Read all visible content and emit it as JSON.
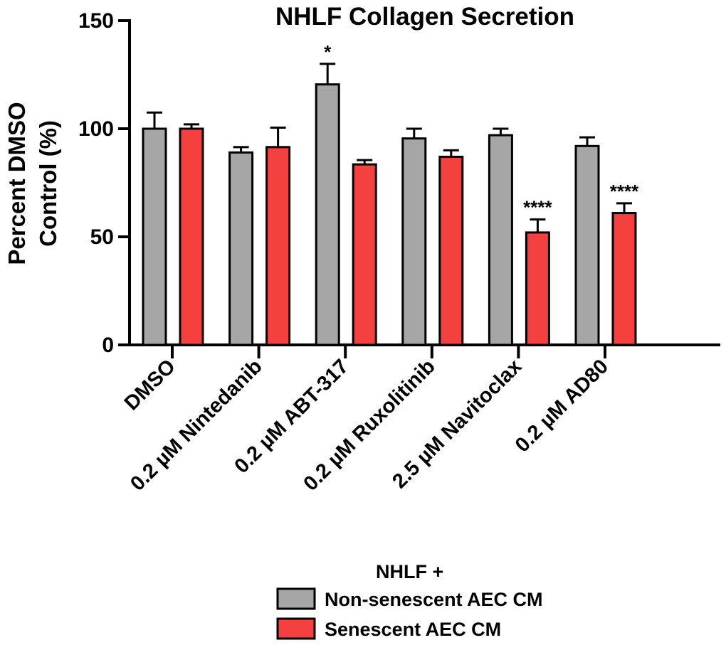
{
  "chart_data": {
    "type": "bar",
    "title": "NHLF Collagen Secretion",
    "ylabel": [
      "Percent DMSO",
      "Control (%)"
    ],
    "xlabel": "",
    "ylim": [
      0,
      150
    ],
    "yticks": [
      0,
      50,
      100,
      150
    ],
    "categories": [
      "DMSO",
      "0.2 µM Nintedanib",
      "0.2 µM ABT-317",
      "0.2 µM Ruxolitinib",
      "2.5 µM Navitoclax",
      "0.2 µM AD80"
    ],
    "series": [
      {
        "name": "Non-senescent AEC CM",
        "color": "#a6a6a6",
        "values": [
          100,
          89,
          120.5,
          95.5,
          97,
          92
        ],
        "errors": [
          7.5,
          2.5,
          9.5,
          4.5,
          3,
          4
        ],
        "annotations": [
          "",
          "",
          "*",
          "",
          "",
          ""
        ]
      },
      {
        "name": "Senescent AEC CM",
        "color": "#f54040",
        "values": [
          100,
          91.5,
          83.5,
          87,
          52,
          61
        ],
        "errors": [
          2,
          9,
          2,
          3,
          6,
          4.5
        ],
        "annotations": [
          "",
          "",
          "",
          "",
          "****",
          "****"
        ]
      }
    ],
    "legend": {
      "title": "NHLF +",
      "placement": "bottom-center",
      "entries": [
        "Non-senescent AEC CM",
        "Senescent AEC CM"
      ]
    }
  }
}
